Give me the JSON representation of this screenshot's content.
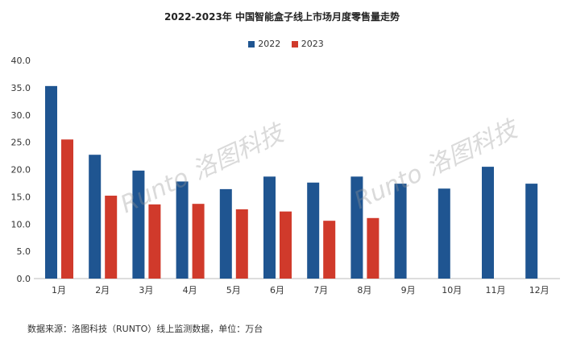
{
  "chart_data": {
    "type": "bar",
    "title": "2022-2023年 中国智能盒子线上市场月度零售量走势",
    "categories": [
      "1月",
      "2月",
      "3月",
      "4月",
      "5月",
      "6月",
      "7月",
      "8月",
      "9月",
      "10月",
      "11月",
      "12月"
    ],
    "series": [
      {
        "name": "2022",
        "color": "#1f5591",
        "values": [
          35.3,
          22.7,
          19.8,
          17.8,
          16.4,
          18.7,
          17.6,
          18.7,
          17.4,
          16.5,
          20.5,
          17.4
        ]
      },
      {
        "name": "2023",
        "color": "#d03a2b",
        "values": [
          25.5,
          15.2,
          13.6,
          13.7,
          12.7,
          12.3,
          10.6,
          11.1,
          null,
          null,
          null,
          null
        ]
      }
    ],
    "ylim": [
      0,
      40
    ],
    "yticks": [
      "0.0",
      "5.0",
      "10.0",
      "15.0",
      "20.0",
      "25.0",
      "30.0",
      "35.0",
      "40.0"
    ],
    "xlabel": "",
    "ylabel": "",
    "legend": "top-center",
    "grid": false
  },
  "footer": "数据来源：洛图科技（RUNTO）线上监测数据，单位：万台",
  "watermark": "Runto 洛图科技"
}
